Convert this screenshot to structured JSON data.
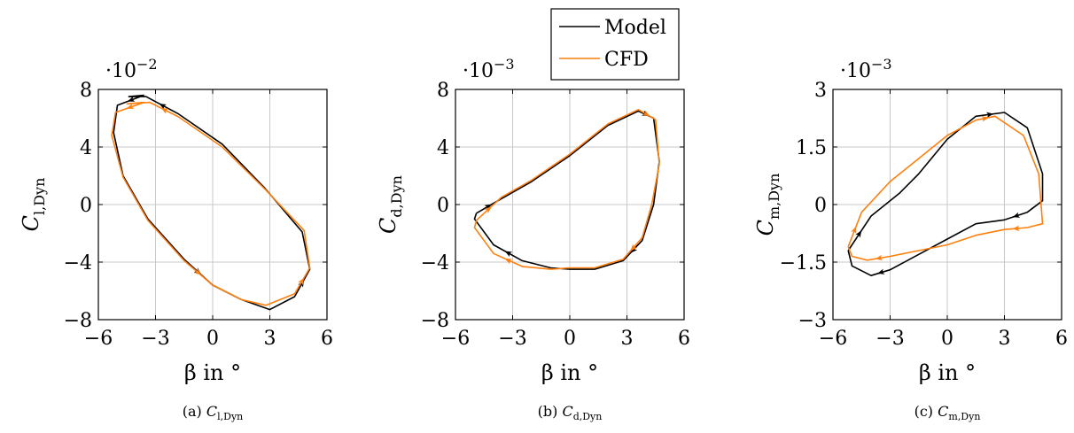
{
  "colors": {
    "model": "#000000",
    "cfd": "#ff7f0e",
    "grid": "#c8c8c8"
  },
  "legend": {
    "placement": "top-center",
    "entries": [
      "Model",
      "CFD"
    ]
  },
  "chart_data": [
    {
      "type": "line",
      "caption_prefix": "(a)",
      "xlabel": "β in °",
      "ylabel": {
        "sym": "C",
        "sub": "l,Dyn"
      },
      "caption_sym": {
        "sym": "C",
        "sub": "l,Dyn"
      },
      "exponent": "·10",
      "exponent_power": "−2",
      "xlim": [
        -6,
        6
      ],
      "ylim": [
        -8,
        8
      ],
      "xticks": [
        -6,
        -3,
        0,
        3,
        6
      ],
      "xtick_labels": [
        "−6",
        "−3",
        "0",
        "3",
        "6"
      ],
      "yticks": [
        -8,
        -4,
        0,
        4,
        8
      ],
      "ytick_labels": [
        "−8",
        "−4",
        "0",
        "4",
        "8"
      ],
      "grid": true,
      "series": [
        {
          "name": "Model",
          "color": "#000000",
          "x": [
            -3.6,
            -5.0,
            -5.2,
            -4.7,
            -3.4,
            -1.5,
            0.0,
            1.5,
            3.0,
            4.3,
            5.1,
            4.7,
            2.7,
            0.5,
            -1.8,
            -3.5,
            -4.4,
            -3.6
          ],
          "y": [
            7.6,
            6.9,
            5.0,
            2.0,
            -1.0,
            -3.8,
            -5.6,
            -6.6,
            -7.3,
            -6.4,
            -4.5,
            -1.9,
            1.2,
            4.2,
            6.3,
            7.5,
            7.5,
            7.6
          ]
        },
        {
          "name": "CFD",
          "color": "#ff7f0e",
          "x": [
            -3.6,
            -5.1,
            -5.3,
            -4.7,
            -3.4,
            -1.5,
            0.0,
            1.5,
            2.8,
            4.3,
            5.1,
            4.8,
            2.8,
            0.5,
            -1.8,
            -3.3,
            -4.5,
            -3.6
          ],
          "y": [
            7.1,
            6.4,
            4.8,
            1.9,
            -1.1,
            -3.9,
            -5.6,
            -6.6,
            -7.0,
            -6.2,
            -4.4,
            -1.8,
            1.0,
            4.0,
            6.1,
            7.1,
            7.0,
            7.1
          ]
        }
      ]
    },
    {
      "type": "line",
      "caption_prefix": "(b)",
      "xlabel": "β in °",
      "ylabel": {
        "sym": "C",
        "sub": "d,Dyn"
      },
      "caption_sym": {
        "sym": "C",
        "sub": "d,Dyn"
      },
      "exponent": "·10",
      "exponent_power": "−3",
      "xlim": [
        -6,
        6
      ],
      "ylim": [
        -8,
        8
      ],
      "xticks": [
        -6,
        -3,
        0,
        3,
        6
      ],
      "xtick_labels": [
        "−6",
        "−3",
        "0",
        "3",
        "6"
      ],
      "yticks": [
        -8,
        -4,
        0,
        4,
        8
      ],
      "ytick_labels": [
        "−8",
        "−4",
        "0",
        "4",
        "8"
      ],
      "grid": true,
      "series": [
        {
          "name": "Model",
          "color": "#000000",
          "x": [
            -4.9,
            -3.6,
            -2.0,
            0.0,
            2.0,
            3.6,
            4.4,
            4.7,
            4.4,
            3.8,
            2.8,
            1.3,
            0.0,
            -1.0,
            -2.5,
            -4.0,
            -5.0,
            -4.9
          ],
          "y": [
            -0.6,
            0.4,
            1.6,
            3.4,
            5.5,
            6.5,
            6.0,
            3.0,
            0.0,
            -2.5,
            -3.9,
            -4.5,
            -4.5,
            -4.4,
            -3.9,
            -2.8,
            -1.0,
            -0.6
          ]
        },
        {
          "name": "CFD",
          "color": "#ff7f0e",
          "x": [
            -4.9,
            -3.6,
            -2.0,
            0.0,
            2.0,
            3.6,
            4.5,
            4.7,
            4.3,
            3.8,
            2.8,
            1.3,
            0.0,
            -1.0,
            -2.5,
            -4.0,
            -5.0,
            -4.9
          ],
          "y": [
            -1.1,
            0.5,
            1.7,
            3.5,
            5.6,
            6.6,
            5.9,
            2.8,
            0.0,
            -2.3,
            -3.8,
            -4.4,
            -4.4,
            -4.5,
            -4.3,
            -3.4,
            -1.6,
            -1.1
          ]
        }
      ]
    },
    {
      "type": "line",
      "caption_prefix": "(c)",
      "xlabel": "β in °",
      "ylabel": {
        "sym": "C",
        "sub": "m,Dyn"
      },
      "caption_sym": {
        "sym": "C",
        "sub": "m,Dyn"
      },
      "exponent": "·10",
      "exponent_power": "−3",
      "xlim": [
        -6,
        6
      ],
      "ylim": [
        -3,
        3
      ],
      "xticks": [
        -6,
        -3,
        0,
        3,
        6
      ],
      "xtick_labels": [
        "−6",
        "−3",
        "0",
        "3",
        "6"
      ],
      "yticks": [
        -3,
        -1.5,
        0,
        1.5,
        3
      ],
      "ytick_labels": [
        "−3",
        "−1.5",
        "0",
        "1.5",
        "3"
      ],
      "grid": true,
      "series": [
        {
          "name": "Model",
          "color": "#000000",
          "x": [
            -5.2,
            -4.0,
            -2.5,
            -1.5,
            0.0,
            1.5,
            3.0,
            4.2,
            5.0,
            5.0,
            4.2,
            3.0,
            1.5,
            0.0,
            -1.5,
            -3.0,
            -4.0,
            -5.0,
            -5.2
          ],
          "y": [
            -1.2,
            -0.3,
            0.3,
            0.8,
            1.7,
            2.3,
            2.4,
            2.0,
            0.8,
            0.1,
            -0.2,
            -0.4,
            -0.5,
            -0.9,
            -1.3,
            -1.7,
            -1.85,
            -1.6,
            -1.2
          ]
        },
        {
          "name": "CFD",
          "color": "#ff7f0e",
          "x": [
            -5.2,
            -4.5,
            -3.0,
            -1.5,
            0.0,
            1.5,
            2.5,
            4.0,
            4.8,
            5.0,
            4.2,
            3.0,
            1.5,
            0.0,
            -1.5,
            -3.0,
            -4.2,
            -5.0,
            -5.2
          ],
          "y": [
            -1.1,
            -0.2,
            0.6,
            1.2,
            1.8,
            2.2,
            2.3,
            1.8,
            0.8,
            -0.5,
            -0.6,
            -0.65,
            -0.8,
            -1.05,
            -1.2,
            -1.35,
            -1.45,
            -1.35,
            -1.1
          ]
        }
      ]
    }
  ]
}
